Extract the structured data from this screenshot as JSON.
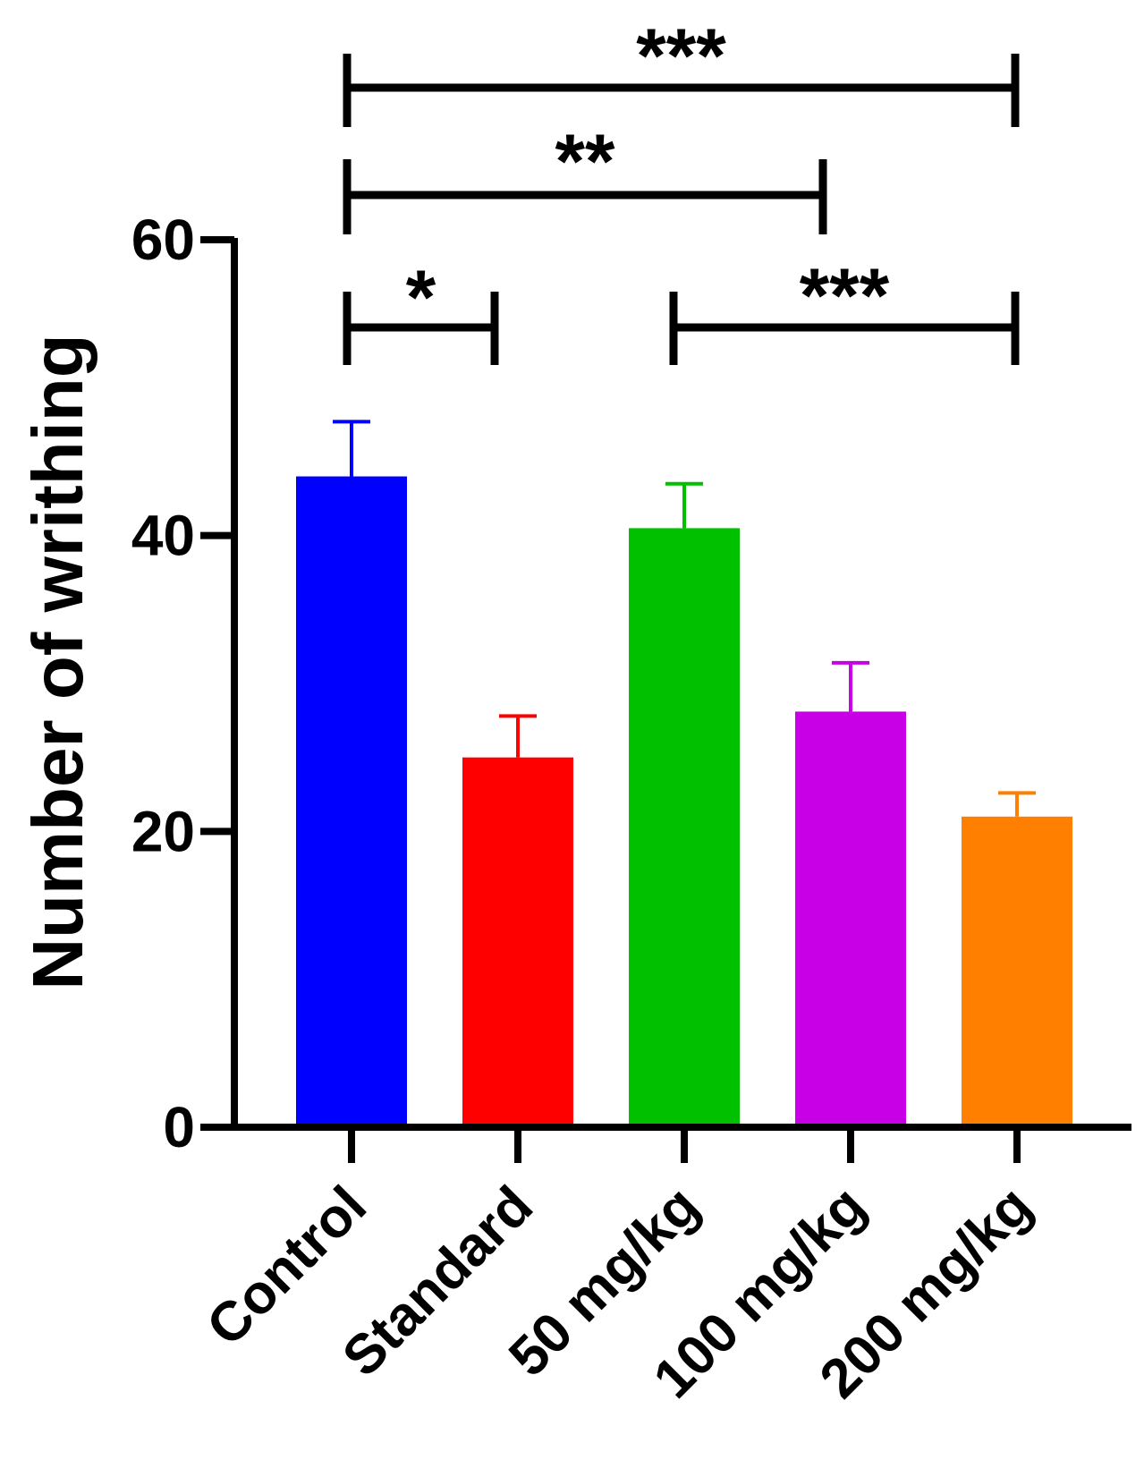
{
  "chart_data": {
    "type": "bar",
    "title": "",
    "xlabel": "",
    "ylabel": "Number of writhing",
    "ylim": [
      0,
      60
    ],
    "yticks": [
      0,
      20,
      40,
      60
    ],
    "categories": [
      "Control",
      "Standard",
      "50 mg/kg",
      "100 mg/kg",
      "200 mg/kg"
    ],
    "values": [
      44,
      25,
      40.5,
      28.1,
      21
    ],
    "errors": [
      3.7,
      2.8,
      3,
      3.3,
      1.6
    ],
    "colors": [
      "#0000ff",
      "#ff0000",
      "#00c000",
      "#c800e6",
      "#ff8000"
    ],
    "significance": [
      {
        "from": "Control",
        "to": "200 mg/kg",
        "label": "***"
      },
      {
        "from": "Control",
        "to": "100 mg/kg",
        "label": "**"
      },
      {
        "from": "Control",
        "to": "Standard",
        "label": "*"
      },
      {
        "from": "50 mg/kg",
        "to": "200 mg/kg",
        "label": "***"
      }
    ]
  }
}
